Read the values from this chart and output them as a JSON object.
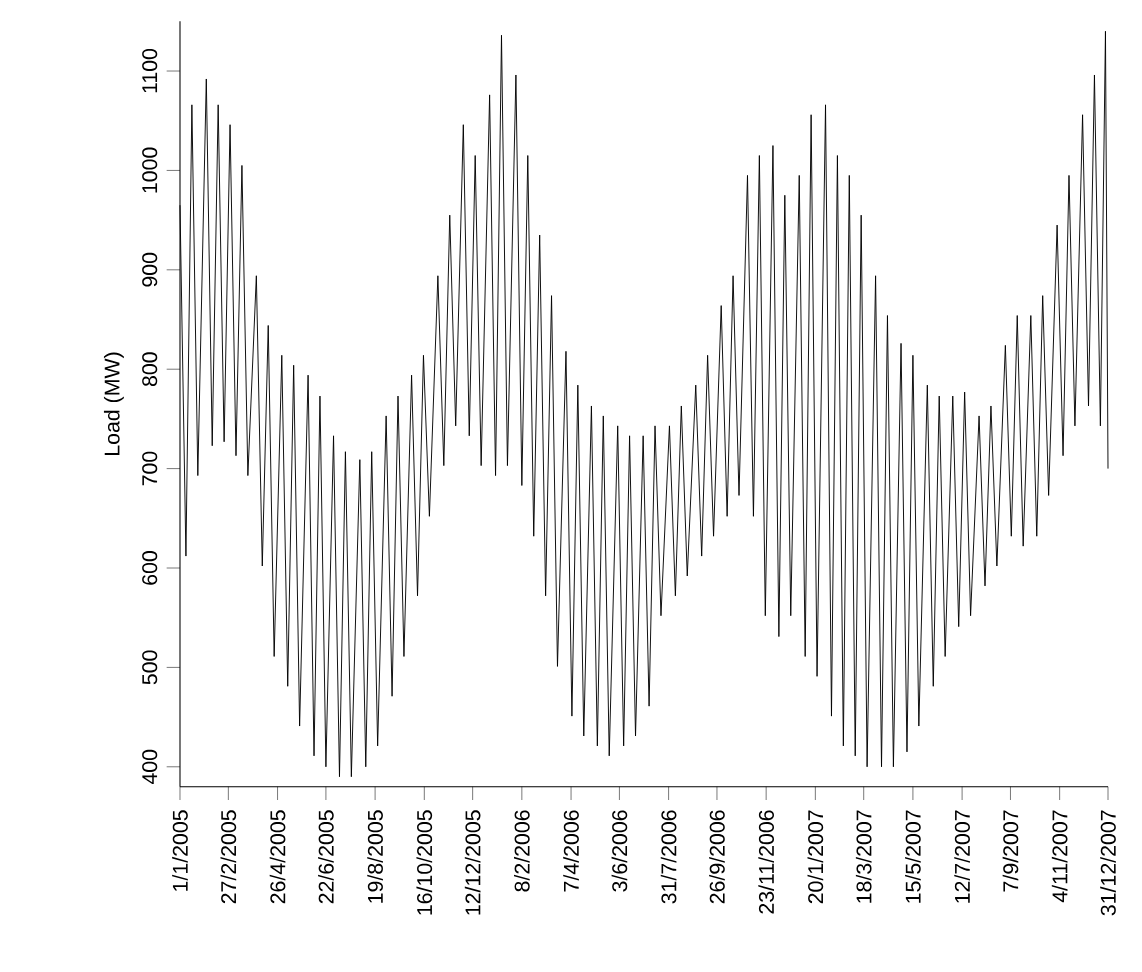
{
  "chart_data": {
    "type": "line",
    "ylabel": "Load (MW)",
    "x": [
      "2005-01-01",
      "2005-01-08",
      "2005-01-15",
      "2005-01-22",
      "2005-02-01",
      "2005-02-08",
      "2005-02-15",
      "2005-02-22",
      "2005-03-01",
      "2005-03-08",
      "2005-03-15",
      "2005-03-22",
      "2005-04-01",
      "2005-04-08",
      "2005-04-15",
      "2005-04-22",
      "2005-05-01",
      "2005-05-08",
      "2005-05-15",
      "2005-05-22",
      "2005-06-01",
      "2005-06-08",
      "2005-06-15",
      "2005-06-22",
      "2005-07-01",
      "2005-07-08",
      "2005-07-15",
      "2005-07-22",
      "2005-08-01",
      "2005-08-08",
      "2005-08-15",
      "2005-08-22",
      "2005-09-01",
      "2005-09-08",
      "2005-09-15",
      "2005-09-22",
      "2005-10-01",
      "2005-10-08",
      "2005-10-15",
      "2005-10-22",
      "2005-11-01",
      "2005-11-08",
      "2005-11-15",
      "2005-11-22",
      "2005-12-01",
      "2005-12-08",
      "2005-12-15",
      "2005-12-22",
      "2006-01-01",
      "2006-01-08",
      "2006-01-15",
      "2006-01-22",
      "2006-02-01",
      "2006-02-08",
      "2006-02-15",
      "2006-02-22",
      "2006-03-01",
      "2006-03-08",
      "2006-03-15",
      "2006-03-22",
      "2006-04-01",
      "2006-04-08",
      "2006-04-15",
      "2006-04-22",
      "2006-05-01",
      "2006-05-08",
      "2006-05-15",
      "2006-05-22",
      "2006-06-01",
      "2006-06-08",
      "2006-06-15",
      "2006-06-22",
      "2006-07-01",
      "2006-07-08",
      "2006-07-15",
      "2006-07-22",
      "2006-08-01",
      "2006-08-08",
      "2006-08-15",
      "2006-08-22",
      "2006-09-01",
      "2006-09-08",
      "2006-09-15",
      "2006-09-22",
      "2006-10-01",
      "2006-10-08",
      "2006-10-15",
      "2006-10-22",
      "2006-11-01",
      "2006-11-08",
      "2006-11-15",
      "2006-11-22",
      "2006-12-01",
      "2006-12-08",
      "2006-12-15",
      "2006-12-22",
      "2007-01-01",
      "2007-01-08",
      "2007-01-15",
      "2007-01-22",
      "2007-02-01",
      "2007-02-08",
      "2007-02-15",
      "2007-02-22",
      "2007-03-01",
      "2007-03-08",
      "2007-03-15",
      "2007-03-22",
      "2007-04-01",
      "2007-04-08",
      "2007-04-15",
      "2007-04-22",
      "2007-05-01",
      "2007-05-08",
      "2007-05-15",
      "2007-05-22",
      "2007-06-01",
      "2007-06-08",
      "2007-06-15",
      "2007-06-22",
      "2007-07-01",
      "2007-07-08",
      "2007-07-15",
      "2007-07-22",
      "2007-08-01",
      "2007-08-08",
      "2007-08-15",
      "2007-08-22",
      "2007-09-01",
      "2007-09-08",
      "2007-09-15",
      "2007-09-22",
      "2007-10-01",
      "2007-10-08",
      "2007-10-15",
      "2007-10-22",
      "2007-11-01",
      "2007-11-08",
      "2007-11-15",
      "2007-11-22",
      "2007-12-01",
      "2007-12-08",
      "2007-12-15",
      "2007-12-22",
      "2007-12-28",
      "2007-12-31"
    ],
    "values": [
      965,
      612,
      1066,
      693,
      1092,
      723,
      1066,
      727,
      1046,
      713,
      1005,
      693,
      894,
      602,
      844,
      511,
      814,
      481,
      804,
      441,
      794,
      411,
      773,
      400,
      733,
      390,
      717,
      390,
      709,
      400,
      717,
      421,
      753,
      471,
      773,
      511,
      794,
      572,
      814,
      652,
      894,
      703,
      955,
      743,
      1046,
      733,
      1015,
      703,
      1076,
      693,
      1136,
      703,
      1096,
      683,
      1015,
      632,
      935,
      572,
      874,
      501,
      818,
      451,
      784,
      431,
      763,
      421,
      753,
      411,
      743,
      421,
      733,
      431,
      733,
      461,
      743,
      552,
      743,
      572,
      763,
      592,
      784,
      612,
      814,
      632,
      864,
      652,
      894,
      673,
      995,
      652,
      1015,
      552,
      1025,
      531,
      975,
      552,
      995,
      511,
      1056,
      491,
      1066,
      451,
      1015,
      421,
      995,
      411,
      955,
      400,
      894,
      400,
      854,
      400,
      826,
      415,
      814,
      441,
      784,
      481,
      773,
      511,
      773,
      541,
      777,
      552,
      753,
      582,
      763,
      602,
      824,
      632,
      854,
      622,
      854,
      632,
      874,
      673,
      945,
      713,
      995,
      743,
      1056,
      763,
      1096,
      743,
      1140,
      700
    ],
    "color": "#000000",
    "xlim": [
      "2005-01-01",
      "2007-12-31"
    ],
    "ylim": [
      380,
      1150
    ],
    "xticks": [
      {
        "value": "2005-01-01",
        "label": "1/1/2005"
      },
      {
        "value": "2005-02-27",
        "label": "27/2/2005"
      },
      {
        "value": "2005-04-26",
        "label": "26/4/2005"
      },
      {
        "value": "2005-06-22",
        "label": "22/6/2005"
      },
      {
        "value": "2005-08-19",
        "label": "19/8/2005"
      },
      {
        "value": "2005-10-16",
        "label": "16/10/2005"
      },
      {
        "value": "2005-12-12",
        "label": "12/12/2005"
      },
      {
        "value": "2006-02-08",
        "label": "8/2/2006"
      },
      {
        "value": "2006-04-07",
        "label": "7/4/2006"
      },
      {
        "value": "2006-06-03",
        "label": "3/6/2006"
      },
      {
        "value": "2006-07-31",
        "label": "31/7/2006"
      },
      {
        "value": "2006-09-26",
        "label": "26/9/2006"
      },
      {
        "value": "2006-11-23",
        "label": "23/11/2006"
      },
      {
        "value": "2007-01-20",
        "label": "20/1/2007"
      },
      {
        "value": "2007-03-18",
        "label": "18/3/2007"
      },
      {
        "value": "2007-05-15",
        "label": "15/5/2007"
      },
      {
        "value": "2007-07-12",
        "label": "12/7/2007"
      },
      {
        "value": "2007-09-07",
        "label": "7/9/2007"
      },
      {
        "value": "2007-11-04",
        "label": "4/11/2007"
      },
      {
        "value": "2007-12-31",
        "label": "31/12/2007"
      }
    ],
    "yticks": [
      400,
      500,
      600,
      700,
      800,
      900,
      1000,
      1100
    ],
    "marker": "none",
    "line_style": "solid"
  }
}
